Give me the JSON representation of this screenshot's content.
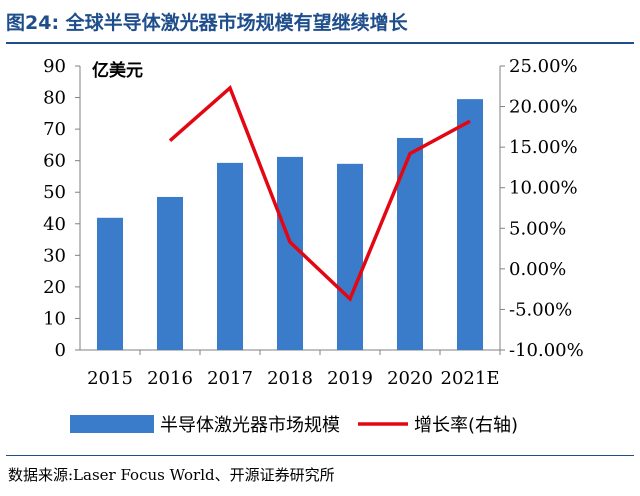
{
  "figure": {
    "title": "图24:  全球半导体激光器市场规模有望继续增长",
    "unit": "亿美元",
    "source": "数据来源:Laser Focus World、开源证券研究所"
  },
  "chart_data": {
    "type": "bar+line",
    "categories": [
      "2015",
      "2016",
      "2017",
      "2018",
      "2019",
      "2020",
      "2021E"
    ],
    "series": [
      {
        "name": "半导体激光器市场规模",
        "type": "bar",
        "axis": "left",
        "color": "#3a7cc9",
        "values": [
          41.9,
          48.5,
          59.3,
          61.2,
          59.0,
          67.2,
          79.5
        ]
      },
      {
        "name": "增长率(右轴)",
        "type": "line",
        "axis": "right",
        "color": "#e30613",
        "values": [
          null,
          15.8,
          22.3,
          3.3,
          -3.7,
          14.2,
          18.2
        ]
      }
    ],
    "y_left": {
      "min": 0,
      "max": 90,
      "ticks": [
        "0",
        "10",
        "20",
        "30",
        "40",
        "50",
        "60",
        "70",
        "80",
        "90"
      ]
    },
    "y_right": {
      "min": -10,
      "max": 25,
      "ticks": [
        "-10.00%",
        "-5.00%",
        "0.00%",
        "5.00%",
        "10.00%",
        "15.00%",
        "20.00%",
        "25.00%"
      ]
    },
    "grid": false,
    "legend_position": "bottom"
  }
}
